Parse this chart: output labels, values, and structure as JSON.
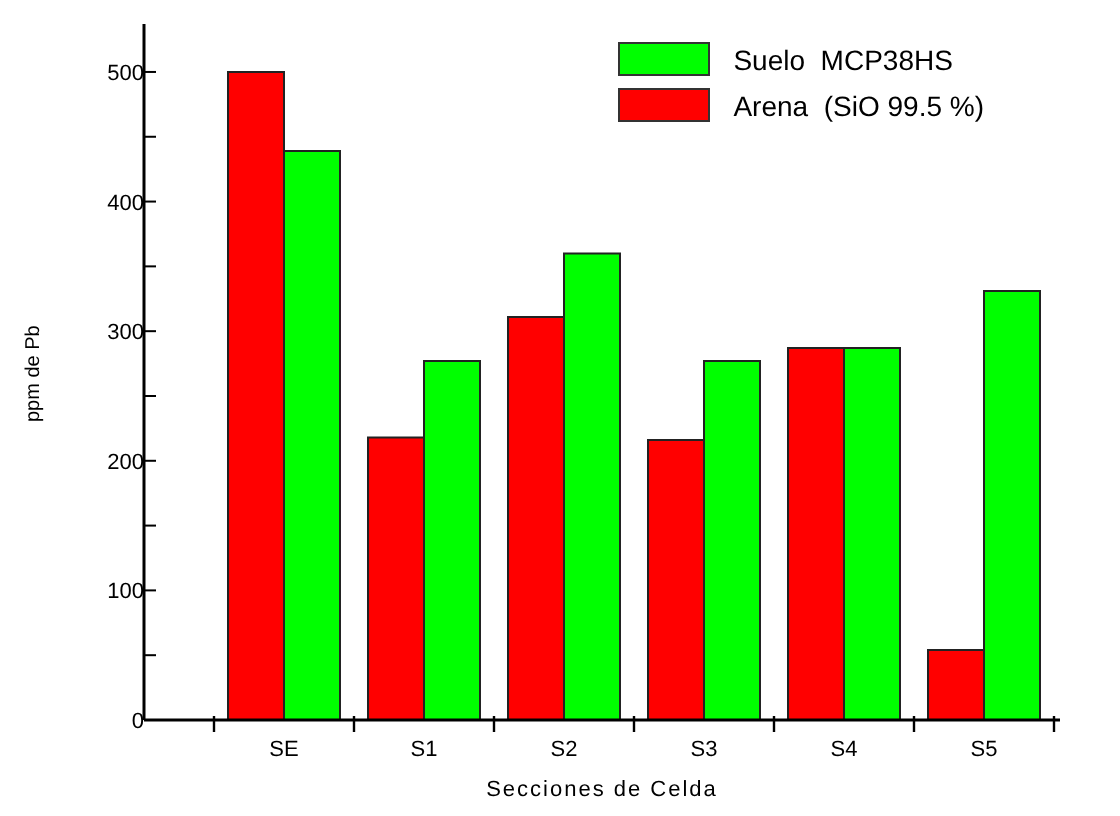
{
  "chart_data": {
    "type": "bar",
    "xlabel": "Secciones de Celda",
    "ylabel": "ppm de Pb",
    "categories": [
      "SE",
      "S1",
      "S2",
      "S3",
      "S4",
      "S5"
    ],
    "series": [
      {
        "name": "Arena  (SiO 99.5 %)",
        "color": "#ff0000",
        "values": [
          500,
          218,
          311,
          216,
          287,
          54
        ]
      },
      {
        "name": "Suelo  MCP38HS",
        "color": "#00ff00",
        "values": [
          439,
          277,
          360,
          277,
          287,
          331
        ]
      }
    ],
    "ylim": [
      0,
      537
    ],
    "yticks": [
      0,
      {
        "value": 50,
        "label": null
      },
      100,
      {
        "value": 150,
        "label": null
      },
      200,
      {
        "value": 250,
        "label": null
      },
      300,
      {
        "value": 350,
        "label": null
      },
      400,
      {
        "value": 450,
        "label": null
      },
      500
    ],
    "grid": false,
    "legend": "top right"
  }
}
